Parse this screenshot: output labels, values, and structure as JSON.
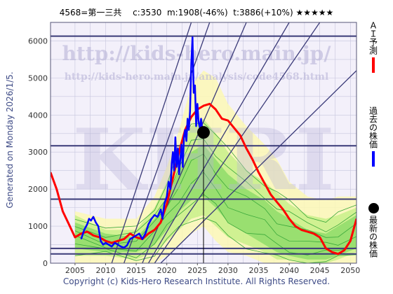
{
  "title": "4568=第一三共　 c:3530  m:1908(-46%)  t:3886(+10%) ★★★★★",
  "sidebar_label": "Generated on Monday 2026/1/5.",
  "copyright": "Copyright (c) Kids-Hero Research Institute. All Rights Reserved.",
  "watermark": {
    "main": "http://kids-hero.main.jp/",
    "sub": "http://kids-hero.main.jp/analysis/code4568.html",
    "logo": "KHRI"
  },
  "legend": [
    {
      "label": "ＡＩ予測",
      "color": "#ff0000",
      "kind": "line"
    },
    {
      "label": "過去の株価",
      "color": "#0000ff",
      "kind": "line"
    },
    {
      "label": "最新の株価",
      "color": "#000000",
      "kind": "dot"
    }
  ],
  "colors": {
    "background": "#f3f0fa",
    "grid": "#c5c5dd",
    "trend_lines": "#3a3a78",
    "band_outer": "#fbf8b4",
    "band_mid": "#c8f08a",
    "band_inner": "#8fdc6a",
    "projection": "#3aa83a",
    "ai_forecast": "#ff0000",
    "past_price": "#0000ff",
    "latest_price": "#000000",
    "watermark": "#b8b4d8"
  },
  "chart_data": {
    "type": "line",
    "xlim": [
      2001,
      2051
    ],
    "ylim": [
      0,
      6500
    ],
    "x_ticks": [
      2005,
      2010,
      2015,
      2020,
      2025,
      2030,
      2035,
      2040,
      2045,
      2050
    ],
    "y_ticks": [
      0,
      1000,
      2000,
      3000,
      4000,
      5000,
      6000
    ],
    "grid": true,
    "legend_position": "right",
    "latest": {
      "x": 2026.0,
      "y": 3530
    },
    "horizontal_levels": [
      6130,
      3170,
      1730,
      400,
      250
    ],
    "diagonal_lines": [
      {
        "x": [
          2011,
          2024
        ],
        "y": [
          0,
          6500
        ]
      },
      {
        "x": [
          2013,
          2027
        ],
        "y": [
          0,
          6500
        ]
      },
      {
        "x": [
          2016,
          2033
        ],
        "y": [
          0,
          6500
        ]
      },
      {
        "x": [
          2017,
          2040
        ],
        "y": [
          0,
          6500
        ]
      },
      {
        "x": [
          2018,
          2045
        ],
        "y": [
          0,
          6500
        ]
      },
      {
        "x": [
          2019,
          2051
        ],
        "y": [
          0,
          5200
        ]
      }
    ],
    "bands": {
      "x": [
        2005,
        2010,
        2015,
        2018,
        2020,
        2022,
        2024,
        2026,
        2028,
        2030,
        2033,
        2036,
        2038,
        2040,
        2043,
        2046,
        2048,
        2051
      ],
      "outer_low": [
        0,
        0,
        0,
        0,
        200,
        500,
        800,
        1000,
        600,
        300,
        200,
        0,
        0,
        0,
        0,
        0,
        0,
        0
      ],
      "outer_high": [
        1400,
        1200,
        1200,
        1800,
        2600,
        3600,
        4800,
        5200,
        5000,
        4300,
        3700,
        3200,
        2800,
        2200,
        1800,
        1700,
        1800,
        1800
      ],
      "mid_low": [
        200,
        200,
        100,
        300,
        600,
        900,
        1200,
        1300,
        1000,
        700,
        500,
        300,
        100,
        100,
        0,
        0,
        100,
        300
      ],
      "mid_high": [
        1300,
        900,
        900,
        1500,
        2200,
        3000,
        3700,
        3900,
        3500,
        3000,
        2500,
        2200,
        1900,
        1600,
        1300,
        1200,
        1300,
        1500
      ],
      "inner_low": [
        400,
        300,
        300,
        500,
        900,
        1400,
        1700,
        1800,
        1500,
        1100,
        800,
        500,
        300,
        200,
        100,
        100,
        200,
        400
      ],
      "inner_high": [
        1100,
        800,
        700,
        1200,
        1800,
        2500,
        3000,
        3200,
        2800,
        2400,
        2000,
        1700,
        1400,
        1200,
        900,
        800,
        1000,
        1300
      ]
    },
    "series": [
      {
        "x": [
          2001,
          2002,
          2003,
          2004,
          2005,
          2006,
          2007,
          2008,
          2009,
          2010,
          2011,
          2012,
          2013,
          2014,
          2015,
          2016,
          2017,
          2018,
          2019,
          2020,
          2021,
          2022,
          2023,
          2024,
          2025,
          2026,
          2027,
          2028,
          2029,
          2030,
          2031,
          2032,
          2033,
          2034,
          2035,
          2036,
          2037,
          2038,
          2039,
          2040,
          2041,
          2042,
          2043,
          2044,
          2045,
          2046,
          2047,
          2048,
          2049,
          2050,
          2051
        ],
        "values": [
          2450,
          2000,
          1400,
          1050,
          700,
          800,
          850,
          750,
          700,
          600,
          550,
          600,
          650,
          800,
          700,
          650,
          800,
          900,
          1100,
          1600,
          2300,
          3000,
          3600,
          3950,
          4150,
          4250,
          4300,
          4150,
          3900,
          3850,
          3650,
          3450,
          3100,
          2800,
          2450,
          2150,
          1850,
          1650,
          1450,
          1200,
          1000,
          900,
          850,
          800,
          700,
          400,
          300,
          250,
          350,
          600,
          1200
        ]
      },
      {
        "x": [
          2006.0,
          2006.5,
          2007.0,
          2007.3,
          2007.6,
          2008.0,
          2008.4,
          2008.8,
          2009.2,
          2009.6,
          2010.0,
          2010.5,
          2011.0,
          2011.5,
          2012.0,
          2012.5,
          2013.0,
          2013.5,
          2014.0,
          2014.5,
          2015.0,
          2015.5,
          2016.0,
          2016.5,
          2017.0,
          2017.5,
          2018.0,
          2018.5,
          2019.0,
          2019.3,
          2019.6,
          2020.0,
          2020.3,
          2020.6,
          2020.8,
          2021.0,
          2021.2,
          2021.4,
          2021.6,
          2021.8,
          2022.0,
          2022.2,
          2022.4,
          2022.6,
          2022.8,
          2023.0,
          2023.2,
          2023.4,
          2023.6,
          2023.8,
          2024.0,
          2024.2,
          2024.4,
          2024.6,
          2024.8,
          2025.0,
          2025.2,
          2025.4,
          2025.6,
          2025.8,
          2026.0
        ],
        "values": [
          650,
          900,
          1050,
          1200,
          1150,
          1250,
          1100,
          1000,
          600,
          500,
          550,
          500,
          450,
          550,
          500,
          450,
          420,
          480,
          650,
          700,
          750,
          800,
          650,
          800,
          1050,
          1200,
          1300,
          1250,
          1450,
          1200,
          1600,
          1800,
          2200,
          2000,
          2700,
          3000,
          2500,
          3400,
          2600,
          3100,
          2400,
          2800,
          3200,
          2600,
          3400,
          3600,
          3300,
          3900,
          3600,
          4100,
          5400,
          6100,
          4600,
          4800,
          3700,
          4300,
          3800,
          3650,
          3900,
          3600,
          3530
        ]
      }
    ]
  }
}
